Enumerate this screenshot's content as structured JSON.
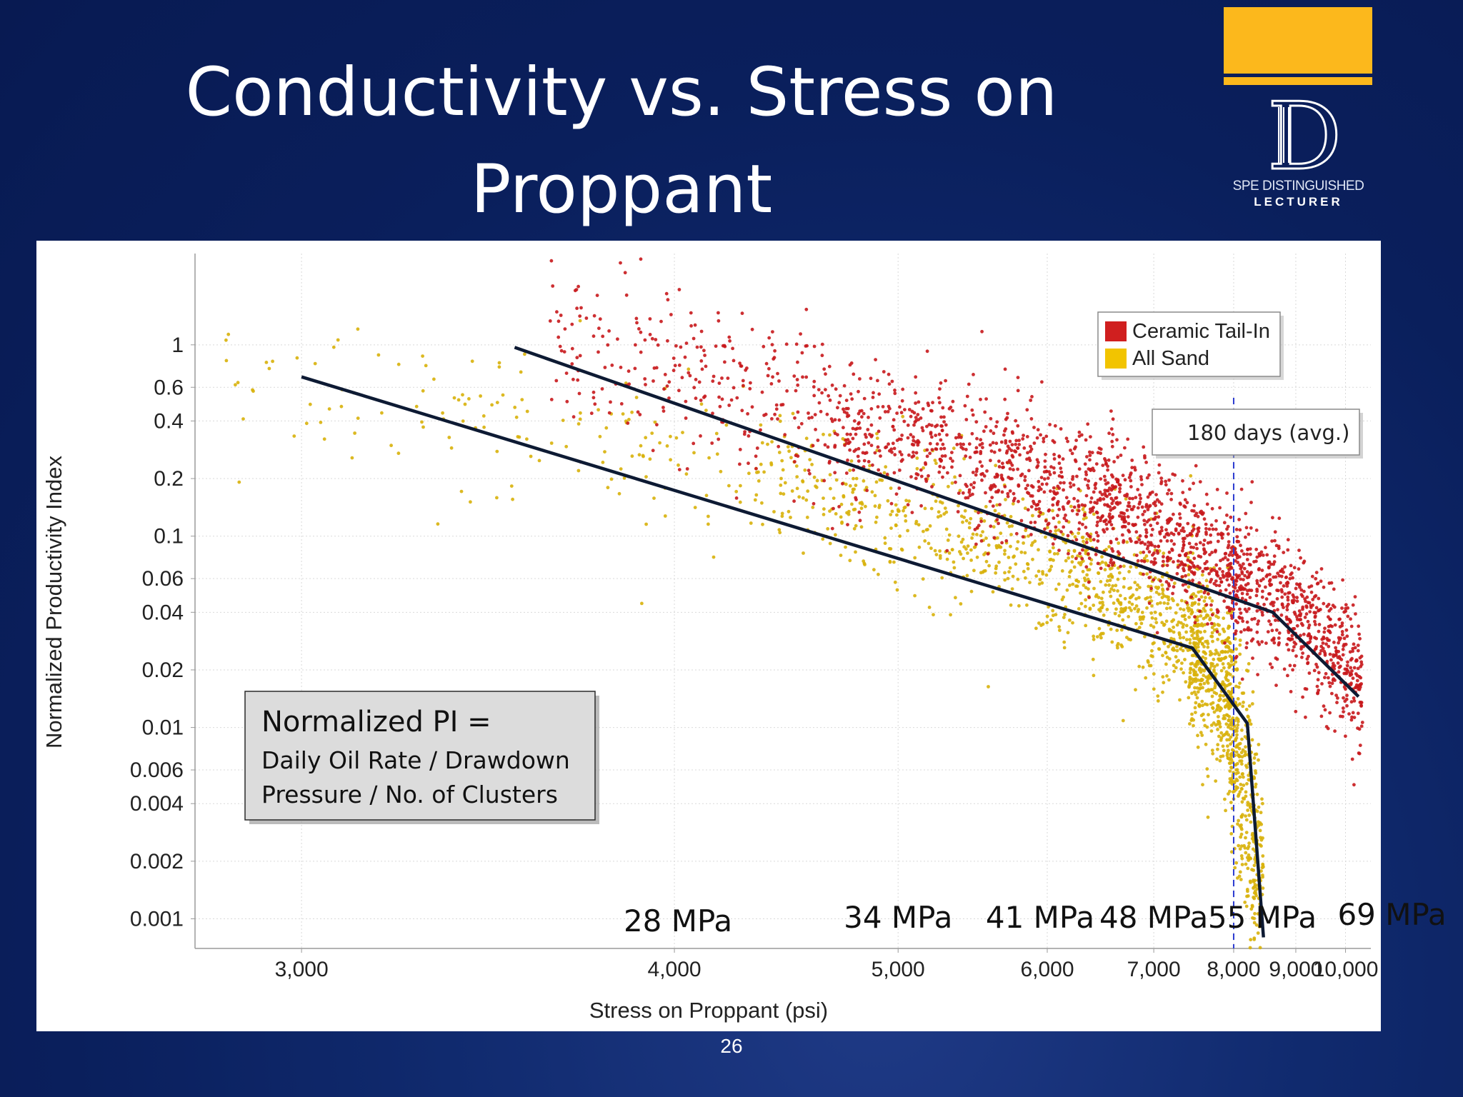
{
  "slide": {
    "title_line1": "Conductivity vs. Stress on",
    "title_line2": "Proppant",
    "page_number": "26",
    "logo": {
      "line1": "SPE DISTINGUISHED",
      "line2": "LECTURER",
      "lettermark": "D",
      "accent_color": "#fcb81c"
    },
    "background_color": "#0a1f5c"
  },
  "chart_data": {
    "type": "scatter",
    "title": "",
    "xlabel": "Stress on Proppant (psi)",
    "ylabel": "Normalized Productivity Index",
    "x_scale": "reciprocal",
    "y_scale": "log",
    "xlim": [
      2800,
      10600
    ],
    "ylim": [
      0.0007,
      3
    ],
    "x_ticks": [
      {
        "value": 3000,
        "label": "3,000"
      },
      {
        "value": 4000,
        "label": "4,000"
      },
      {
        "value": 5000,
        "label": "5,000"
      },
      {
        "value": 6000,
        "label": "6,000"
      },
      {
        "value": 7000,
        "label": "7,000"
      },
      {
        "value": 8000,
        "label": "8,000"
      },
      {
        "value": 9000,
        "label": "9,000"
      },
      {
        "value": 10000,
        "label": "10,000"
      }
    ],
    "y_ticks": [
      {
        "value": 1,
        "label": "1"
      },
      {
        "value": 0.6,
        "label": "0.6"
      },
      {
        "value": 0.4,
        "label": "0.4"
      },
      {
        "value": 0.2,
        "label": "0.2"
      },
      {
        "value": 0.1,
        "label": "0.1"
      },
      {
        "value": 0.06,
        "label": "0.06"
      },
      {
        "value": 0.04,
        "label": "0.04"
      },
      {
        "value": 0.02,
        "label": "0.02"
      },
      {
        "value": 0.01,
        "label": "0.01"
      },
      {
        "value": 0.006,
        "label": "0.006"
      },
      {
        "value": 0.004,
        "label": "0.004"
      },
      {
        "value": 0.002,
        "label": "0.002"
      },
      {
        "value": 0.001,
        "label": "0.001"
      }
    ],
    "grid": true,
    "legend": {
      "placement": "top-right",
      "entries": [
        {
          "name": "Ceramic Tail-In",
          "color": "#d01f1f"
        },
        {
          "name": "All Sand",
          "color": "#f2c400"
        }
      ]
    },
    "series": [
      {
        "name": "Ceramic Tail-In",
        "color": "#c8181c",
        "trend_line": [
          [
            3500,
            0.97
          ],
          [
            8600,
            0.04
          ],
          [
            10300,
            0.0145
          ]
        ],
        "point_clouds": [
          {
            "x": [
              3600,
              4800
            ],
            "y_center": [
              1.15,
              0.35
            ],
            "log_spread": 0.22,
            "count": 320
          },
          {
            "x": [
              4700,
              6600
            ],
            "y_center": [
              0.38,
              0.14
            ],
            "log_spread": 0.18,
            "count": 700
          },
          {
            "x": [
              6500,
              8400
            ],
            "y_center": [
              0.15,
              0.05
            ],
            "log_spread": 0.17,
            "count": 650
          },
          {
            "x": [
              8400,
              10400
            ],
            "y_center": [
              0.055,
              0.016
            ],
            "log_spread": 0.18,
            "count": 500
          }
        ]
      },
      {
        "name": "All Sand",
        "color": "#d8b10a",
        "trend_line": [
          [
            3000,
            0.68
          ],
          [
            7450,
            0.026
          ],
          [
            8200,
            0.0105
          ],
          [
            8450,
            0.0008
          ]
        ],
        "point_clouds": [
          {
            "x": [
              2850,
              4300
            ],
            "y_center": [
              0.7,
              0.2
            ],
            "log_spread": 0.2,
            "count": 150
          },
          {
            "x": [
              4300,
              6200
            ],
            "y_center": [
              0.22,
              0.06
            ],
            "log_spread": 0.18,
            "count": 450
          },
          {
            "x": [
              6200,
              7600
            ],
            "y_center": [
              0.07,
              0.025
            ],
            "log_spread": 0.17,
            "count": 450
          },
          {
            "x": [
              7400,
              8000
            ],
            "y_center": [
              0.03,
              0.012
            ],
            "log_spread": 0.25,
            "count": 380
          },
          {
            "x": [
              7900,
              8450
            ],
            "y_center": [
              0.015,
              0.0015
            ],
            "log_spread": 0.3,
            "count": 380
          }
        ]
      }
    ],
    "vertical_marker": {
      "x": 8000,
      "style": "dashed",
      "color": "#2b3bd0"
    },
    "annotations": [
      {
        "id": "days",
        "text": "180 days (avg.)"
      },
      {
        "id": "formula_title",
        "text": "Normalized PI ="
      },
      {
        "id": "formula_line1",
        "text": "Daily Oil Rate / Drawdown"
      },
      {
        "id": "formula_line2",
        "text": "Pressure / No. of Clusters"
      }
    ],
    "mpa_labels": [
      {
        "x": 4000,
        "text": "28 MPa"
      },
      {
        "x": 5000,
        "text": "34 MPa"
      },
      {
        "x": 6000,
        "text": "41 MPa"
      },
      {
        "x": 7000,
        "text": "48 MPa"
      },
      {
        "x": 8000,
        "text": "55 MPa"
      },
      {
        "x": 10000,
        "text": "69 MPa"
      }
    ]
  }
}
